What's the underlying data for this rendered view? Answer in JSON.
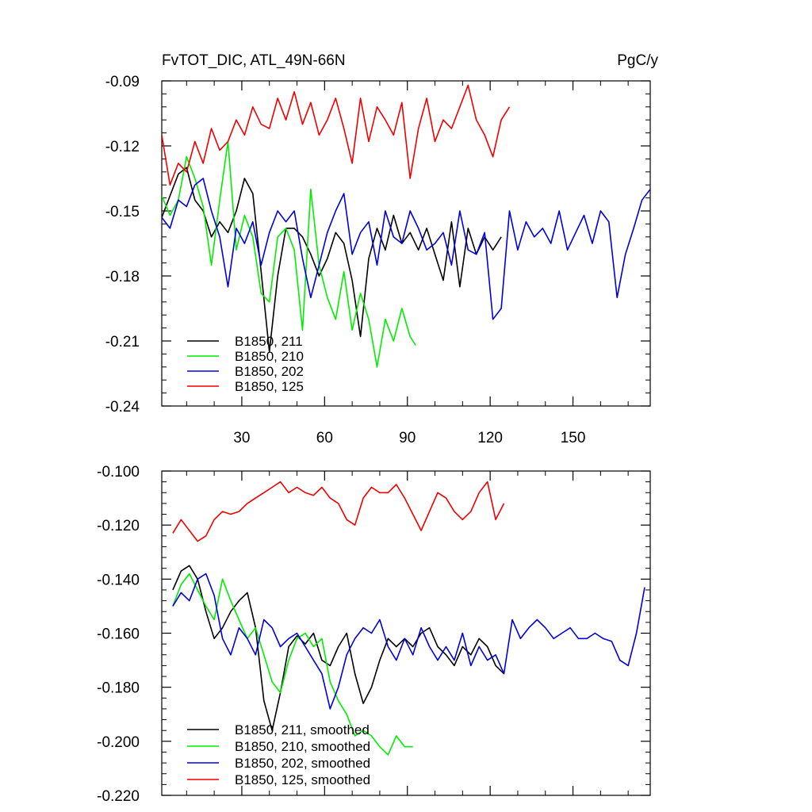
{
  "chart_data": [
    {
      "type": "line",
      "title": "FvTOT_DIC, ATL_49N-66N",
      "units": "PgC/y",
      "xlabel": "",
      "ylabel": "",
      "xlim": [
        1,
        178
      ],
      "ylim": [
        -0.24,
        -0.09
      ],
      "xticks": [
        30,
        60,
        90,
        120,
        150
      ],
      "xtick_labels": [
        "30",
        "60",
        "90",
        "120",
        "150"
      ],
      "yticks": [
        -0.24,
        -0.21,
        -0.18,
        -0.15,
        -0.12,
        -0.09
      ],
      "ytick_labels": [
        "-0.24",
        "-0.21",
        "-0.18",
        "-0.15",
        "-0.12",
        "-0.09"
      ],
      "legend_position": "bottom-left",
      "series": [
        {
          "name": "B1850, 211",
          "color": "#000000",
          "x": [
            1,
            4,
            7,
            10,
            13,
            16,
            19,
            22,
            25,
            28,
            31,
            34,
            37,
            40,
            43,
            46,
            49,
            52,
            55,
            58,
            61,
            64,
            67,
            70,
            73,
            76,
            79,
            82,
            85,
            88,
            91,
            94,
            97,
            100,
            103,
            106,
            109,
            112,
            115,
            118,
            121,
            124
          ],
          "values": [
            -0.153,
            -0.143,
            -0.133,
            -0.13,
            -0.145,
            -0.15,
            -0.162,
            -0.155,
            -0.16,
            -0.15,
            -0.135,
            -0.142,
            -0.178,
            -0.215,
            -0.18,
            -0.158,
            -0.158,
            -0.162,
            -0.17,
            -0.18,
            -0.172,
            -0.16,
            -0.165,
            -0.182,
            -0.208,
            -0.172,
            -0.158,
            -0.168,
            -0.152,
            -0.165,
            -0.16,
            -0.168,
            -0.158,
            -0.17,
            -0.182,
            -0.155,
            -0.185,
            -0.158,
            -0.17,
            -0.162,
            -0.168,
            -0.162
          ]
        },
        {
          "name": "B1850, 210",
          "color": "#00ee00",
          "x": [
            1,
            4,
            7,
            10,
            13,
            16,
            19,
            22,
            25,
            28,
            31,
            34,
            37,
            40,
            43,
            46,
            49,
            52,
            55,
            58,
            61,
            64,
            67,
            70,
            73,
            76,
            79,
            82,
            85,
            88,
            91,
            93
          ],
          "values": [
            -0.143,
            -0.152,
            -0.145,
            -0.125,
            -0.135,
            -0.148,
            -0.175,
            -0.145,
            -0.118,
            -0.168,
            -0.152,
            -0.162,
            -0.188,
            -0.192,
            -0.162,
            -0.158,
            -0.168,
            -0.205,
            -0.14,
            -0.175,
            -0.19,
            -0.2,
            -0.178,
            -0.205,
            -0.188,
            -0.2,
            -0.222,
            -0.2,
            -0.21,
            -0.195,
            -0.208,
            -0.212
          ]
        },
        {
          "name": "B1850, 202",
          "color": "#0000dd",
          "x": [
            1,
            4,
            7,
            10,
            13,
            16,
            19,
            22,
            25,
            28,
            31,
            34,
            37,
            40,
            43,
            46,
            49,
            52,
            55,
            58,
            61,
            64,
            67,
            70,
            73,
            76,
            79,
            82,
            85,
            88,
            91,
            94,
            97,
            100,
            103,
            106,
            109,
            112,
            115,
            118,
            121,
            124,
            127,
            130,
            133,
            136,
            139,
            142,
            145,
            148,
            151,
            154,
            157,
            160,
            163,
            166,
            169,
            172,
            175,
            178
          ],
          "values": [
            -0.153,
            -0.158,
            -0.145,
            -0.148,
            -0.138,
            -0.135,
            -0.15,
            -0.162,
            -0.185,
            -0.158,
            -0.165,
            -0.155,
            -0.175,
            -0.16,
            -0.15,
            -0.155,
            -0.15,
            -0.172,
            -0.19,
            -0.175,
            -0.16,
            -0.15,
            -0.142,
            -0.17,
            -0.16,
            -0.155,
            -0.175,
            -0.15,
            -0.162,
            -0.165,
            -0.15,
            -0.158,
            -0.168,
            -0.165,
            -0.16,
            -0.175,
            -0.15,
            -0.168,
            -0.17,
            -0.16,
            -0.2,
            -0.195,
            -0.15,
            -0.168,
            -0.155,
            -0.162,
            -0.158,
            -0.165,
            -0.15,
            -0.168,
            -0.16,
            -0.152,
            -0.165,
            -0.15,
            -0.155,
            -0.19,
            -0.17,
            -0.158,
            -0.145,
            -0.14
          ]
        },
        {
          "name": "B1850, 125",
          "color": "#ee0000",
          "x": [
            1,
            4,
            7,
            10,
            13,
            16,
            19,
            22,
            25,
            28,
            31,
            34,
            37,
            40,
            43,
            46,
            49,
            52,
            55,
            58,
            61,
            64,
            67,
            70,
            73,
            76,
            79,
            82,
            85,
            88,
            91,
            94,
            97,
            100,
            103,
            106,
            109,
            112,
            115,
            118,
            121,
            124,
            127
          ],
          "values": [
            -0.115,
            -0.138,
            -0.128,
            -0.132,
            -0.118,
            -0.128,
            -0.112,
            -0.122,
            -0.118,
            -0.108,
            -0.115,
            -0.102,
            -0.11,
            -0.112,
            -0.098,
            -0.108,
            -0.095,
            -0.11,
            -0.1,
            -0.115,
            -0.108,
            -0.098,
            -0.112,
            -0.128,
            -0.098,
            -0.118,
            -0.102,
            -0.108,
            -0.115,
            -0.1,
            -0.135,
            -0.112,
            -0.098,
            -0.118,
            -0.108,
            -0.112,
            -0.102,
            -0.092,
            -0.108,
            -0.115,
            -0.125,
            -0.108,
            -0.102
          ]
        }
      ]
    },
    {
      "type": "line",
      "title": "",
      "xlabel": "",
      "ylabel": "",
      "xlim": [
        1,
        178
      ],
      "ylim": [
        -0.22,
        -0.1
      ],
      "xticks": [
        30,
        60,
        90,
        120,
        150
      ],
      "yticks": [
        -0.22,
        -0.2,
        -0.18,
        -0.16,
        -0.14,
        -0.12,
        -0.1
      ],
      "ytick_labels": [
        "-0.220",
        "-0.200",
        "-0.180",
        "-0.160",
        "-0.140",
        "-0.120",
        "-0.100"
      ],
      "legend_position": "bottom-left",
      "series": [
        {
          "name": "B1850, 211, smoothed",
          "color": "#000000",
          "x": [
            5,
            8,
            11,
            14,
            17,
            20,
            23,
            26,
            29,
            32,
            35,
            38,
            41,
            44,
            47,
            50,
            53,
            56,
            59,
            62,
            65,
            68,
            71,
            74,
            77,
            80,
            83,
            86,
            89,
            92,
            95,
            98,
            101,
            104,
            107,
            110,
            113,
            116,
            119,
            122,
            125
          ],
          "values": [
            -0.144,
            -0.137,
            -0.135,
            -0.14,
            -0.152,
            -0.162,
            -0.158,
            -0.152,
            -0.148,
            -0.145,
            -0.158,
            -0.185,
            -0.196,
            -0.182,
            -0.165,
            -0.161,
            -0.164,
            -0.16,
            -0.17,
            -0.172,
            -0.165,
            -0.16,
            -0.175,
            -0.186,
            -0.18,
            -0.17,
            -0.162,
            -0.165,
            -0.162,
            -0.165,
            -0.16,
            -0.158,
            -0.165,
            -0.168,
            -0.172,
            -0.165,
            -0.168,
            -0.162,
            -0.165,
            -0.172,
            -0.175
          ]
        },
        {
          "name": "B1850, 210, smoothed",
          "color": "#00ee00",
          "x": [
            5,
            8,
            11,
            14,
            17,
            20,
            23,
            26,
            29,
            32,
            35,
            38,
            41,
            44,
            47,
            50,
            53,
            56,
            59,
            62,
            65,
            68,
            71,
            74,
            77,
            80,
            83,
            86,
            89,
            92
          ],
          "values": [
            -0.15,
            -0.142,
            -0.138,
            -0.144,
            -0.15,
            -0.155,
            -0.14,
            -0.148,
            -0.155,
            -0.162,
            -0.158,
            -0.168,
            -0.178,
            -0.182,
            -0.17,
            -0.162,
            -0.16,
            -0.165,
            -0.162,
            -0.178,
            -0.185,
            -0.19,
            -0.198,
            -0.196,
            -0.198,
            -0.202,
            -0.205,
            -0.198,
            -0.202,
            -0.202
          ]
        },
        {
          "name": "B1850, 202, smoothed",
          "color": "#0000dd",
          "x": [
            5,
            8,
            11,
            14,
            17,
            20,
            23,
            26,
            29,
            32,
            35,
            38,
            41,
            44,
            47,
            50,
            53,
            56,
            59,
            62,
            65,
            68,
            71,
            74,
            77,
            80,
            83,
            86,
            89,
            92,
            95,
            98,
            101,
            104,
            107,
            110,
            113,
            116,
            119,
            122,
            125,
            128,
            131,
            134,
            137,
            140,
            143,
            146,
            149,
            152,
            155,
            158,
            161,
            164,
            167,
            170,
            173,
            176
          ],
          "values": [
            -0.15,
            -0.145,
            -0.148,
            -0.14,
            -0.138,
            -0.146,
            -0.162,
            -0.168,
            -0.158,
            -0.162,
            -0.168,
            -0.155,
            -0.158,
            -0.165,
            -0.162,
            -0.16,
            -0.165,
            -0.17,
            -0.175,
            -0.188,
            -0.18,
            -0.168,
            -0.162,
            -0.158,
            -0.16,
            -0.155,
            -0.165,
            -0.17,
            -0.162,
            -0.168,
            -0.158,
            -0.165,
            -0.17,
            -0.165,
            -0.17,
            -0.16,
            -0.172,
            -0.165,
            -0.17,
            -0.168,
            -0.175,
            -0.155,
            -0.162,
            -0.158,
            -0.155,
            -0.158,
            -0.162,
            -0.16,
            -0.158,
            -0.162,
            -0.162,
            -0.16,
            -0.162,
            -0.163,
            -0.17,
            -0.172,
            -0.16,
            -0.143
          ]
        },
        {
          "name": "B1850, 125, smoothed",
          "color": "#ee0000",
          "x": [
            5,
            8,
            11,
            14,
            17,
            20,
            23,
            26,
            29,
            32,
            35,
            38,
            41,
            44,
            47,
            50,
            53,
            56,
            59,
            62,
            65,
            68,
            71,
            74,
            77,
            80,
            83,
            86,
            89,
            92,
            95,
            98,
            101,
            104,
            107,
            110,
            113,
            116,
            119,
            122,
            125
          ],
          "values": [
            -0.123,
            -0.118,
            -0.122,
            -0.126,
            -0.124,
            -0.118,
            -0.115,
            -0.116,
            -0.115,
            -0.112,
            -0.11,
            -0.108,
            -0.106,
            -0.104,
            -0.108,
            -0.106,
            -0.108,
            -0.109,
            -0.106,
            -0.11,
            -0.112,
            -0.118,
            -0.12,
            -0.11,
            -0.106,
            -0.108,
            -0.108,
            -0.105,
            -0.11,
            -0.116,
            -0.122,
            -0.115,
            -0.108,
            -0.11,
            -0.115,
            -0.118,
            -0.115,
            -0.108,
            -0.104,
            -0.118,
            -0.112
          ]
        }
      ]
    }
  ]
}
